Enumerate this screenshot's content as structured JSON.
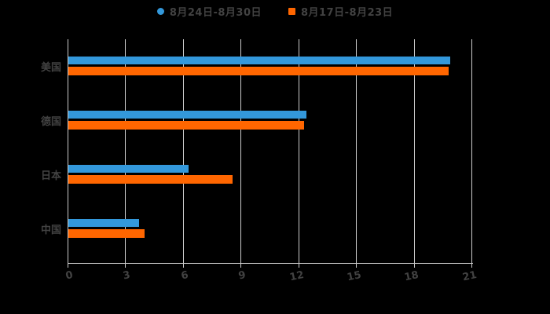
{
  "chart_data": {
    "type": "bar",
    "orientation": "horizontal",
    "title": "",
    "xlabel": "",
    "ylabel": "",
    "categories": [
      "美国",
      "德国",
      "日本",
      "中国"
    ],
    "series": [
      {
        "name": "8月24日-8月30日",
        "color": "#3398DB",
        "marker": "circle",
        "values": [
          19.9,
          12.4,
          6.3,
          3.7
        ]
      },
      {
        "name": "8月17日-8月23日",
        "color": "#FF6600",
        "marker": "square",
        "values": [
          19.8,
          12.3,
          8.6,
          4.0
        ]
      }
    ],
    "xticks": [
      0,
      3,
      6,
      9,
      12,
      15,
      18,
      21
    ],
    "xlim": [
      0,
      21
    ],
    "grid": true,
    "legend_position": "top-center"
  },
  "style": {
    "background_color": "#000000",
    "axis_color": "#cccccc",
    "text_color": "#424242"
  }
}
